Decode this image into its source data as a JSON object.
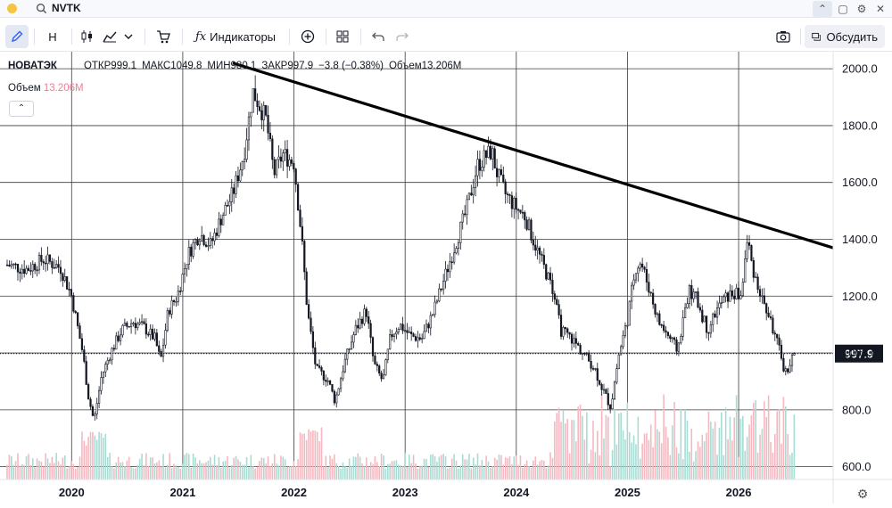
{
  "window": {
    "symbol": "NVTK"
  },
  "toolbar": {
    "interval": "Н",
    "indicators_label": "Индикаторы",
    "discuss_label": "Обсудить"
  },
  "legend": {
    "symbol_name": "НОВАТЭК",
    "open": "ОТКР999.1",
    "high": "МАКС1049.8",
    "low": "МИН980.1",
    "close": "ЗАКР997.9",
    "change": "−3.8 (−0.38%)",
    "volume": "Объем13.206M",
    "volume_label": "Объем",
    "volume_value": "13.206M"
  },
  "colors": {
    "up": "#26a69a",
    "down": "#ef5350",
    "vol_up": "#a8dcd3",
    "vol_down": "#f5b8c0",
    "trendline": "#000000",
    "price_tag": "#131722"
  },
  "chart_data": {
    "type": "candlestick",
    "x_ticks": [
      "2020",
      "2021",
      "2022",
      "2023",
      "2024",
      "2025",
      "2026"
    ],
    "y_ticks": [
      "2000.0",
      "1800.0",
      "1600.0",
      "1400.0",
      "1200.0",
      "1000.0",
      "800.0",
      "600.0"
    ],
    "y_values": [
      2000,
      1800,
      1600,
      1400,
      1200,
      1000,
      800,
      600
    ],
    "ylim": [
      555,
      2060
    ],
    "xlim": [
      2019.42,
      2026.85
    ],
    "current_price": 997.9,
    "current_price_label": "997.9",
    "price_path": [
      [
        2019.42,
        1310
      ],
      [
        2019.6,
        1295
      ],
      [
        2019.75,
        1330
      ],
      [
        2019.9,
        1300
      ],
      [
        2020.0,
        1200
      ],
      [
        2020.1,
        1000
      ],
      [
        2020.15,
        850
      ],
      [
        2020.2,
        760
      ],
      [
        2020.27,
        920
      ],
      [
        2020.35,
        1000
      ],
      [
        2020.45,
        1080
      ],
      [
        2020.55,
        1110
      ],
      [
        2020.65,
        1090
      ],
      [
        2020.75,
        1050
      ],
      [
        2020.8,
        970
      ],
      [
        2020.87,
        1150
      ],
      [
        2020.95,
        1200
      ],
      [
        2021.05,
        1350
      ],
      [
        2021.15,
        1420
      ],
      [
        2021.25,
        1380
      ],
      [
        2021.35,
        1480
      ],
      [
        2021.45,
        1560
      ],
      [
        2021.55,
        1700
      ],
      [
        2021.63,
        1920
      ],
      [
        2021.68,
        1880
      ],
      [
        2021.75,
        1820
      ],
      [
        2021.82,
        1630
      ],
      [
        2021.9,
        1700
      ],
      [
        2022.0,
        1670
      ],
      [
        2022.07,
        1400
      ],
      [
        2022.12,
        1150
      ],
      [
        2022.2,
        940
      ],
      [
        2022.3,
        910
      ],
      [
        2022.37,
        830
      ],
      [
        2022.45,
        960
      ],
      [
        2022.55,
        1080
      ],
      [
        2022.65,
        1150
      ],
      [
        2022.72,
        960
      ],
      [
        2022.8,
        900
      ],
      [
        2022.87,
        1060
      ],
      [
        2022.95,
        1100
      ],
      [
        2023.05,
        1060
      ],
      [
        2023.15,
        1050
      ],
      [
        2023.25,
        1140
      ],
      [
        2023.35,
        1260
      ],
      [
        2023.45,
        1380
      ],
      [
        2023.55,
        1500
      ],
      [
        2023.65,
        1660
      ],
      [
        2023.72,
        1690
      ],
      [
        2023.78,
        1710
      ],
      [
        2023.82,
        1640
      ],
      [
        2023.9,
        1560
      ],
      [
        2024.0,
        1510
      ],
      [
        2024.08,
        1480
      ],
      [
        2024.15,
        1400
      ],
      [
        2024.25,
        1300
      ],
      [
        2024.33,
        1220
      ],
      [
        2024.4,
        1080
      ],
      [
        2024.5,
        1050
      ],
      [
        2024.6,
        1000
      ],
      [
        2024.7,
        950
      ],
      [
        2024.78,
        870
      ],
      [
        2024.85,
        810
      ],
      [
        2024.92,
        990
      ],
      [
        2025.0,
        1120
      ],
      [
        2025.07,
        1300
      ],
      [
        2025.12,
        1320
      ],
      [
        2025.2,
        1220
      ],
      [
        2025.28,
        1110
      ],
      [
        2025.35,
        1070
      ],
      [
        2025.45,
        1010
      ],
      [
        2025.55,
        1220
      ],
      [
        2025.62,
        1190
      ],
      [
        2025.72,
        1080
      ],
      [
        2025.8,
        1150
      ],
      [
        2025.87,
        1190
      ],
      [
        2025.95,
        1210
      ],
      [
        2026.02,
        1200
      ],
      [
        2026.08,
        1400
      ],
      [
        2026.12,
        1310
      ],
      [
        2026.2,
        1200
      ],
      [
        2026.28,
        1120
      ],
      [
        2026.35,
        1030
      ],
      [
        2026.42,
        930
      ],
      [
        2026.5,
        997.9
      ]
    ],
    "trendline": [
      [
        2021.45,
        2020
      ],
      [
        2026.85,
        1370
      ]
    ]
  }
}
